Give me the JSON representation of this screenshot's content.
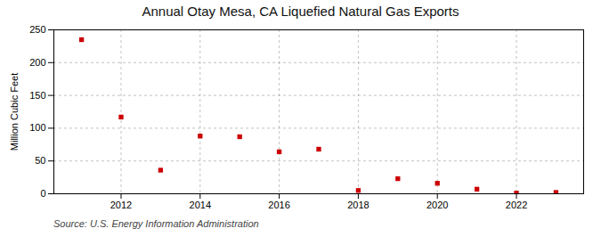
{
  "chart_data": {
    "type": "scatter",
    "title": "Annual Otay Mesa, CA Liquefied Natural Gas Exports",
    "ylabel": "Million Cubic Feet",
    "caption": "Source: U.S. Energy Information Administration",
    "x": [
      2011,
      2012,
      2013,
      2014,
      2015,
      2016,
      2017,
      2018,
      2019,
      2020,
      2021,
      2022,
      2023
    ],
    "values": [
      235,
      117,
      36,
      88,
      87,
      64,
      68,
      5,
      23,
      16,
      7,
      1,
      2
    ],
    "color": "#cc0000",
    "marker": "square",
    "xlim": [
      2010.3,
      2023.7
    ],
    "xticks": [
      2012,
      2014,
      2016,
      2018,
      2020,
      2022
    ],
    "ylim": [
      0,
      250
    ],
    "yticks": [
      0,
      50,
      100,
      150,
      200,
      250
    ],
    "grid": true
  }
}
